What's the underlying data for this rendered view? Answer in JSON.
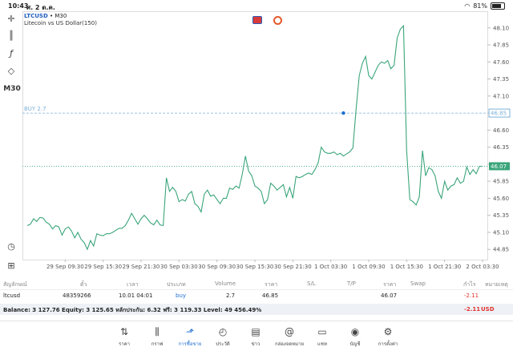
{
  "status": {
    "time": "10:43",
    "date": "ศ. 2 ต.ค.",
    "battery": "81%"
  },
  "left_toolbar": {
    "tools": [
      "crosshair-icon",
      "candles-icon",
      "function-icon",
      "objects-icon"
    ],
    "timeframe": "M30"
  },
  "chart": {
    "symbol": "LTCUSD",
    "timeframe_label": "• M30",
    "description": "Litecoin vs US Dollar(150)",
    "buy_label": "BUY 2.7",
    "buy_line_price": "46.85",
    "current_price": "46.07",
    "line_color": "#3aa57a",
    "buy_line_color": "#7ab1d8"
  },
  "chart_data": {
    "type": "line",
    "title": "",
    "xlabel": "",
    "ylabel": "",
    "ylim": [
      44.7,
      48.25
    ],
    "yticks": [
      "48.10",
      "47.85",
      "47.60",
      "47.35",
      "47.10",
      "46.85",
      "46.60",
      "46.35",
      "46.10",
      "45.85",
      "45.60",
      "45.35",
      "45.10",
      "44.85"
    ],
    "ytick_values": [
      48.1,
      47.85,
      47.6,
      47.35,
      47.1,
      46.85,
      46.6,
      46.35,
      46.1,
      45.85,
      45.6,
      45.35,
      45.1,
      44.85
    ],
    "xticks": [
      "29 Sep 09:30",
      "29 Sep 15:30",
      "29 Sep 21:30",
      "30 Sep 03:30",
      "30 Sep 09:30",
      "30 Sep 15:30",
      "30 Sep 21:30",
      "1 Oct 03:30",
      "1 Oct 09:30",
      "1 Oct 15:30",
      "1 Oct 21:30",
      "2 Oct 03:30"
    ],
    "xtick_positions": [
      12,
      24,
      36,
      48,
      60,
      72,
      84,
      96,
      108,
      120,
      132,
      144
    ],
    "series": [
      {
        "values": [
          45.2,
          45.22,
          45.3,
          45.26,
          45.32,
          45.31,
          45.25,
          45.22,
          45.15,
          45.2,
          45.18,
          45.06,
          45.15,
          45.18,
          45.12,
          45.02,
          45.1,
          45.0,
          44.95,
          44.85,
          44.98,
          44.9,
          45.08,
          45.06,
          45.05,
          45.08,
          45.08,
          45.1,
          45.13,
          45.16,
          45.16,
          45.2,
          45.28,
          45.38,
          45.3,
          45.22,
          45.3,
          45.35,
          45.3,
          45.24,
          45.21,
          45.28,
          45.21,
          45.2,
          45.9,
          45.7,
          45.76,
          45.7,
          45.55,
          45.58,
          45.56,
          45.66,
          45.7,
          45.52,
          45.48,
          45.4,
          45.66,
          45.72,
          45.63,
          45.65,
          45.58,
          45.52,
          45.6,
          45.6,
          45.75,
          45.73,
          45.78,
          45.75,
          45.95,
          46.22,
          46.0,
          45.93,
          45.78,
          45.75,
          45.7,
          45.52,
          45.58,
          45.82,
          45.78,
          45.72,
          45.76,
          45.8,
          45.62,
          45.76,
          45.6,
          45.92,
          45.9,
          45.92,
          45.95,
          45.97,
          45.95,
          46.02,
          46.12,
          46.35,
          46.28,
          46.26,
          46.26,
          46.28,
          46.24,
          46.26,
          46.22,
          46.25,
          46.28,
          46.34,
          46.9,
          47.4,
          47.58,
          47.68,
          47.4,
          47.35,
          47.45,
          47.55,
          47.6,
          47.58,
          47.62,
          47.5,
          47.55,
          47.95,
          48.08,
          48.13,
          46.3,
          45.58,
          45.55,
          45.5,
          45.62,
          46.3,
          45.93,
          46.05,
          46.02,
          45.93,
          45.7,
          45.6,
          45.85,
          45.72,
          45.78,
          45.8,
          45.9,
          45.82,
          45.85,
          46.06,
          45.95,
          46.02,
          45.96,
          46.07,
          46.07
        ]
      }
    ],
    "grid": true
  },
  "table": {
    "headers": [
      "สัญลักษณ์",
      "ตั๋ว",
      "เวลา",
      "ประเภท",
      "Volume",
      "ราคา",
      "S/L",
      "T/P",
      "ราคา",
      "Swap",
      "กำไร",
      "หมายเหตุ"
    ],
    "row": {
      "symbol": "ltcusd",
      "ticket": "48359266",
      "time": "10.01 04:01",
      "type": "buy",
      "volume": "2.7",
      "price": "46.85",
      "sl": "",
      "tp": "",
      "current_price": "46.07",
      "swap": "",
      "profit": "-2.11",
      "comment": ""
    }
  },
  "balance": {
    "text": "Balance: 3 127.76 Equity: 3 125.65 หลักประกัน: 6.32 ฟรี: 3 119.33 Level: 49 456.49%",
    "total": "-2.11",
    "currency": "USD"
  },
  "nav": [
    {
      "label": "ราคา",
      "icon": "quotes-icon"
    },
    {
      "label": "กราฟ",
      "icon": "chart-icon"
    },
    {
      "label": "การซื้อขาย",
      "icon": "trade-icon"
    },
    {
      "label": "ประวัติ",
      "icon": "history-icon"
    },
    {
      "label": "ข่าว",
      "icon": "news-icon"
    },
    {
      "label": "กล่องจดหมาย",
      "icon": "mailbox-icon"
    },
    {
      "label": "แชท",
      "icon": "chat-icon"
    },
    {
      "label": "บัญชี",
      "icon": "account-icon"
    },
    {
      "label": "การตั้งค่า",
      "icon": "settings-icon"
    }
  ]
}
